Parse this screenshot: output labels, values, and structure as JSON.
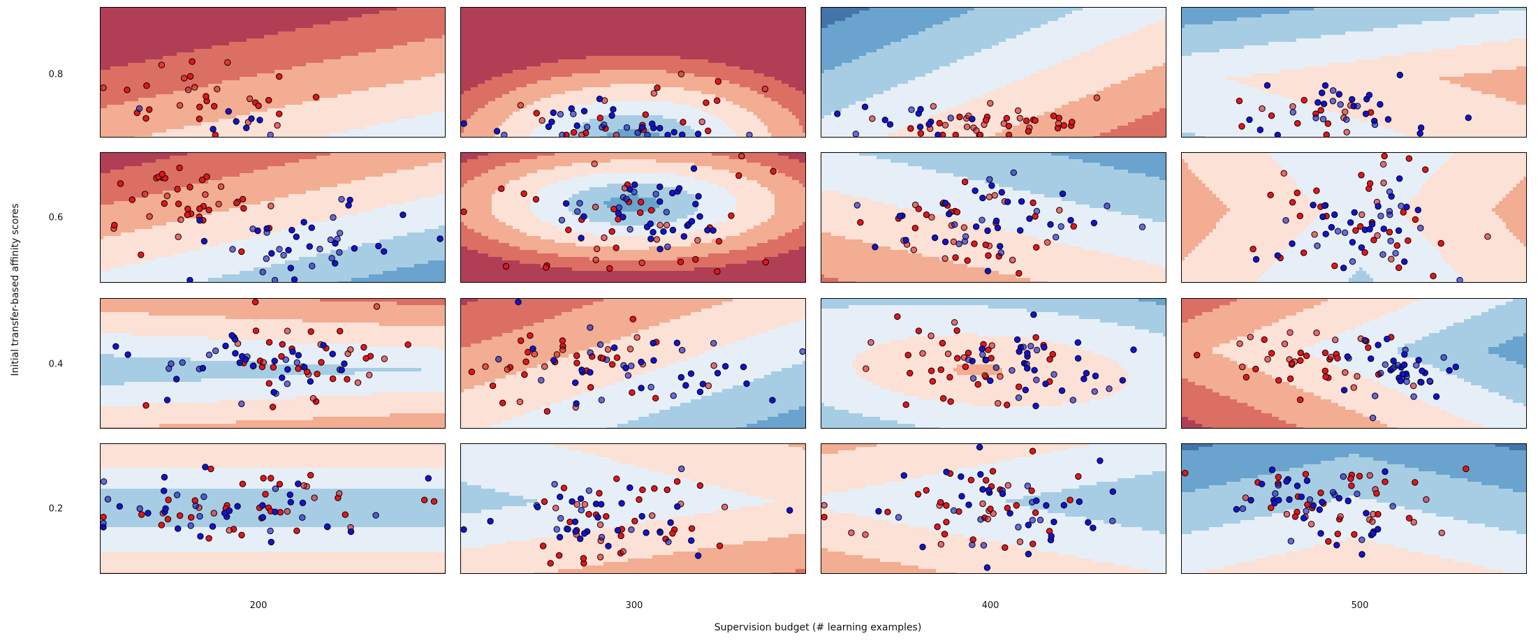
{
  "chart_data": {
    "type": "scatter",
    "title": "",
    "xlabel": "Supervision budget (# learning examples)",
    "ylabel": "Initial transfer-based affinity scores",
    "column_labels": [
      "200",
      "300",
      "400",
      "500"
    ],
    "row_labels": [
      "0.8",
      "0.6",
      "0.4",
      "0.2"
    ],
    "point_colors": {
      "red": "#e8141a",
      "blue": "#1212d6"
    },
    "contour_colors": [
      "#4474a8",
      "#6aa3cd",
      "#a7cde4",
      "#e6eff7",
      "#fbe1d6",
      "#f2ad92",
      "#db6f63",
      "#b03f55"
    ],
    "grid": false,
    "panels": [
      {
        "row_label": "0.8",
        "col_label": "200",
        "red_points": 30,
        "blue_points": 8
      },
      {
        "row_label": "0.8",
        "col_label": "300",
        "red_points": 25,
        "blue_points": 30
      },
      {
        "row_label": "0.8",
        "col_label": "400",
        "red_points": 40,
        "blue_points": 14
      },
      {
        "row_label": "0.8",
        "col_label": "500",
        "red_points": 16,
        "blue_points": 30
      },
      {
        "row_label": "0.6",
        "col_label": "200",
        "red_points": 40,
        "blue_points": 40
      },
      {
        "row_label": "0.6",
        "col_label": "300",
        "red_points": 40,
        "blue_points": 40
      },
      {
        "row_label": "0.6",
        "col_label": "400",
        "red_points": 40,
        "blue_points": 40
      },
      {
        "row_label": "0.6",
        "col_label": "500",
        "red_points": 40,
        "blue_points": 40
      },
      {
        "row_label": "0.4",
        "col_label": "200",
        "red_points": 40,
        "blue_points": 40
      },
      {
        "row_label": "0.4",
        "col_label": "300",
        "red_points": 40,
        "blue_points": 40
      },
      {
        "row_label": "0.4",
        "col_label": "400",
        "red_points": 40,
        "blue_points": 40
      },
      {
        "row_label": "0.4",
        "col_label": "500",
        "red_points": 40,
        "blue_points": 40
      },
      {
        "row_label": "0.2",
        "col_label": "200",
        "red_points": 40,
        "blue_points": 40
      },
      {
        "row_label": "0.2",
        "col_label": "300",
        "red_points": 40,
        "blue_points": 40
      },
      {
        "row_label": "0.2",
        "col_label": "400",
        "red_points": 40,
        "blue_points": 40
      },
      {
        "row_label": "0.2",
        "col_label": "500",
        "red_points": 40,
        "blue_points": 40
      }
    ]
  }
}
